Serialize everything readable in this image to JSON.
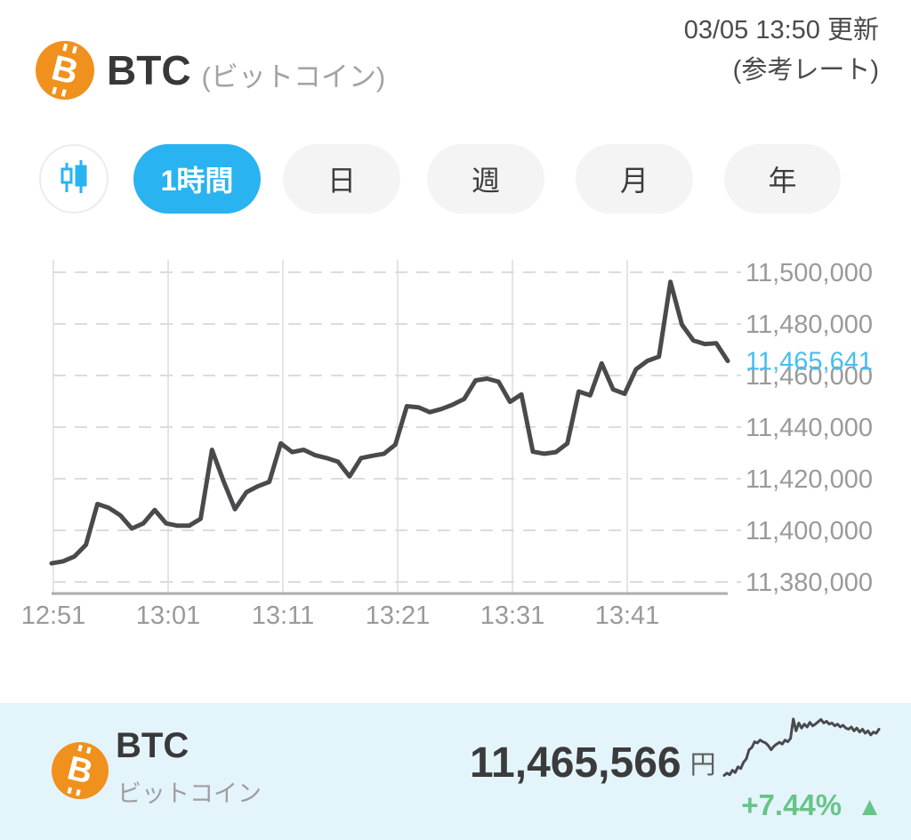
{
  "header": {
    "coin_code": "BTC",
    "coin_name_paren": "(ビットコイン)",
    "bitcoin_symbol": "B",
    "updated": "03/05 13:50 更新",
    "rate_note": "(参考レート)"
  },
  "toolbar": {
    "tabs": [
      {
        "label": "1時間",
        "active": true
      },
      {
        "label": "日",
        "active": false
      },
      {
        "label": "週",
        "active": false
      },
      {
        "label": "月",
        "active": false
      },
      {
        "label": "年",
        "active": false
      }
    ]
  },
  "chart_data": [
    {
      "type": "line",
      "name": "btc-jpy-1hour-price-chart",
      "x_tick_labels": [
        "12:51",
        "13:01",
        "13:11",
        "13:21",
        "13:31",
        "13:41"
      ],
      "y_tick_values": [
        11500000,
        11480000,
        11460000,
        11440000,
        11420000,
        11400000,
        11380000
      ],
      "y_tick_labels": [
        "11,500,000",
        "11,480,000",
        "11,460,000",
        "11,440,000",
        "11,420,000",
        "11,400,000",
        "11,380,000"
      ],
      "ylim": [
        11376000,
        11504000
      ],
      "grid": true,
      "legend": false,
      "line_color": "#4a4a4c",
      "current_price": 11465641,
      "current_price_label": "11,465,641",
      "current_price_color": "#48bef0",
      "values": [
        11387200,
        11388000,
        11389900,
        11394400,
        11410200,
        11408700,
        11405800,
        11400700,
        11402700,
        11407900,
        11402700,
        11401800,
        11401800,
        11404500,
        11431200,
        11419100,
        11408200,
        11414800,
        11417100,
        11418800,
        11433700,
        11430300,
        11431200,
        11429100,
        11428000,
        11426600,
        11420900,
        11428000,
        11428900,
        11429700,
        11433200,
        11448100,
        11447700,
        11445800,
        11447000,
        11448700,
        11450900,
        11458100,
        11458800,
        11457600,
        11449800,
        11452700,
        11430500,
        11429700,
        11430300,
        11433700,
        11453800,
        11452300,
        11464700,
        11454600,
        11452900,
        11462400,
        11465700,
        11467300,
        11496300,
        11479700,
        11473600,
        11472200,
        11472500,
        11465641
      ]
    },
    {
      "type": "line",
      "name": "btc-sparkline",
      "ylim": [
        0,
        100
      ],
      "grid": false,
      "legend": false,
      "line_color": "#4a4a4c",
      "values": [
        1,
        5,
        2,
        10,
        6,
        16,
        13,
        24,
        30,
        46,
        50,
        60,
        58,
        63,
        60,
        58,
        53,
        46,
        52,
        56,
        59,
        56,
        63,
        60,
        66,
        100,
        79,
        93,
        84,
        91,
        86,
        94,
        88,
        91,
        95,
        99,
        93,
        96,
        91,
        93,
        88,
        91,
        86,
        89,
        84,
        82,
        86,
        79,
        84,
        77,
        82,
        75,
        79,
        72,
        77,
        75,
        82
      ]
    }
  ],
  "summary_card": {
    "coin_code": "BTC",
    "coin_name": "ビットコイン",
    "price": "11,465,566",
    "currency_suffix": "円",
    "change_percent": "+7.44%",
    "change_direction": "▲",
    "change_color": "#68c487"
  },
  "colors": {
    "accent_blue": "#29b3f0",
    "bitcoin_orange": "#f0911d",
    "gain_green": "#68c487",
    "chart_line": "#4a4a4c",
    "axis_label_gray": "#9a9a9a",
    "card_background": "#e4f4fb"
  }
}
